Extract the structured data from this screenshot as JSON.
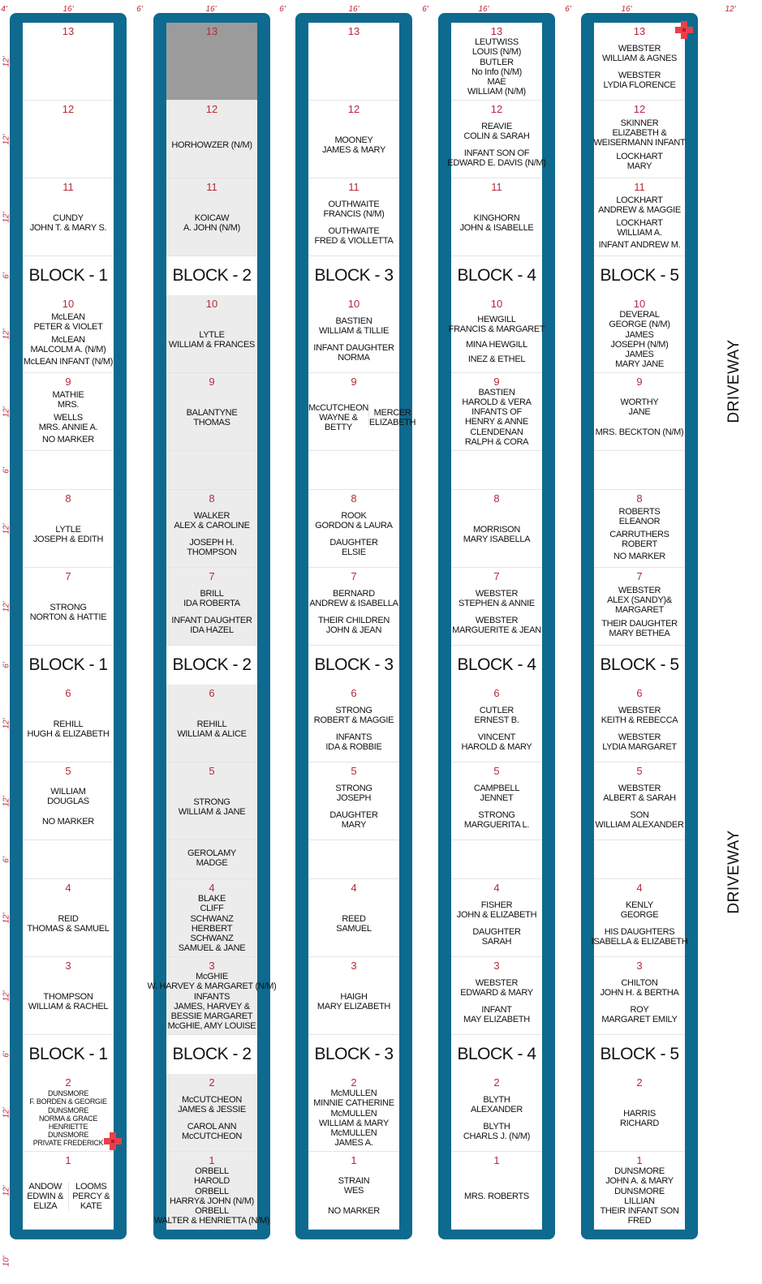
{
  "dimensions": {
    "top": [
      "4'",
      "16'",
      "6'",
      "16'",
      "6'",
      "16'",
      "6'",
      "16'",
      "6'",
      "16'",
      "12'"
    ],
    "lot": "12'",
    "row": "6'",
    "bottom": "10'"
  },
  "driveway": "DRIVEWAY",
  "blocks": [
    {
      "name": "BLOCK - 1",
      "lots": [
        {
          "number": 13,
          "entries": []
        },
        {
          "number": 12,
          "entries": []
        },
        {
          "number": 11,
          "entries": [
            [
              "CUNDY",
              "JOHN T. & MARY S."
            ]
          ]
        },
        {
          "number": 10,
          "entries": [
            [
              "McLEAN",
              "PETER & VIOLET"
            ],
            [
              "McLEAN",
              "MALCOLM A. (N/M)"
            ],
            [
              "McLEAN INFANT (N/M)"
            ]
          ]
        },
        {
          "number": 9,
          "entries": [
            [
              "MATHIE",
              "MRS."
            ],
            [
              "WELLS",
              "MRS. ANNIE A."
            ],
            [
              "NO MARKER"
            ]
          ]
        },
        {
          "number": 8,
          "entries": [
            [
              "LYTLE",
              "JOSEPH & EDITH"
            ]
          ]
        },
        {
          "number": 7,
          "entries": [
            [
              "STRONG",
              "NORTON & HATTIE"
            ]
          ]
        },
        {
          "number": 6,
          "entries": [
            [
              "REHILL",
              "HUGH & ELIZABETH"
            ]
          ]
        },
        {
          "number": 5,
          "entries": [
            [
              "WILLIAM",
              "DOUGLAS"
            ],
            [
              "NO MARKER"
            ]
          ]
        },
        {
          "number": 4,
          "entries": [
            [
              "REID",
              "THOMAS & SAMUEL"
            ]
          ]
        },
        {
          "number": 3,
          "entries": [
            [
              "THOMPSON",
              "WILLIAM & RACHEL"
            ]
          ]
        },
        {
          "number": 2,
          "entries": [
            [
              "DUNSMORE",
              "F. BORDEN & GEORGIE"
            ],
            [
              "DUNSMORE",
              "NORMA & GRACE",
              "HENRIETTE"
            ],
            [
              "DUNSMORE",
              "PRIVATE FREDERICK"
            ]
          ]
        },
        {
          "number": 1,
          "split": true,
          "entries": [
            [
              "ANDOW",
              "EDWIN &",
              "ELIZA"
            ],
            [
              "LOOMS",
              "PERCY &",
              "KATE"
            ]
          ]
        }
      ],
      "gaps": [
        [],
        []
      ]
    },
    {
      "name": "BLOCK - 2",
      "background": "#ececec",
      "lots": [
        {
          "number": 13,
          "entries": [],
          "background": "#9b9b9b"
        },
        {
          "number": 12,
          "entries": [
            [
              "HORHOWZER (N/M)"
            ]
          ]
        },
        {
          "number": 11,
          "entries": [
            [
              "KOICAW",
              "A. JOHN (N/M)"
            ]
          ]
        },
        {
          "number": 10,
          "entries": [
            [
              "LYTLE",
              "WILLIAM & FRANCES"
            ]
          ]
        },
        {
          "number": 9,
          "entries": [
            [
              "BALANTYNE",
              "THOMAS"
            ]
          ]
        },
        {
          "number": 8,
          "entries": [
            [
              "WALKER",
              "ALEX & CAROLINE"
            ],
            [
              "JOSEPH H.",
              "THOMPSON"
            ]
          ]
        },
        {
          "number": 7,
          "entries": [
            [
              "BRILL",
              "IDA ROBERTA"
            ],
            [
              "INFANT DAUGHTER",
              "IDA HAZEL"
            ]
          ]
        },
        {
          "number": 6,
          "entries": [
            [
              "REHILL",
              "WILLIAM & ALICE"
            ]
          ]
        },
        {
          "number": 5,
          "entries": [
            [
              "STRONG",
              "WILLIAM & JANE"
            ]
          ]
        },
        {
          "number": 4,
          "entries": [
            [
              "BLAKE",
              "CLIFF"
            ],
            [
              "SCHWANZ",
              "HERBERT"
            ],
            [
              "SCHWANZ",
              "SAMUEL & JANE"
            ]
          ]
        },
        {
          "number": 3,
          "entries": [
            [
              "McGHIE",
              "W. HARVEY & MARGARET (N/M)"
            ],
            [
              "INFANTS",
              "JAMES, HARVEY &",
              "BESSIE MARGARET"
            ],
            [
              "McGHIE, AMY LOUISE"
            ]
          ]
        },
        {
          "number": 2,
          "entries": [
            [
              "McCUTCHEON",
              "JAMES & JESSIE"
            ],
            [
              "CAROL ANN",
              "McCUTCHEON"
            ]
          ]
        },
        {
          "number": 1,
          "entries": [
            [
              "ORBELL",
              "HAROLD"
            ],
            [
              "ORBELL",
              "HARRY& JOHN (N/M)"
            ],
            [
              "ORBELL",
              "WALTER & HENRIETTA (N/M)"
            ]
          ]
        }
      ],
      "gaps": [
        [],
        [
          [
            "GEROLAMY",
            "MADGE"
          ]
        ]
      ]
    },
    {
      "name": "BLOCK - 3",
      "lots": [
        {
          "number": 13,
          "entries": []
        },
        {
          "number": 12,
          "entries": [
            [
              "MOONEY",
              "JAMES & MARY"
            ]
          ]
        },
        {
          "number": 11,
          "entries": [
            [
              "OUTHWAITE",
              "FRANCIS (N/M)"
            ],
            [
              "OUTHWAITE",
              "FRED & VIOLLETTA"
            ]
          ]
        },
        {
          "number": 10,
          "entries": [
            [
              "BASTIEN",
              "WILLIAM & TILLIE"
            ],
            [
              "INFANT DAUGHTER",
              "NORMA"
            ]
          ]
        },
        {
          "number": 9,
          "split": true,
          "entries": [
            [
              "McCUTCHEON",
              "WAYNE &",
              "BETTY"
            ],
            [
              "MERCER",
              "ELIZABETH"
            ]
          ]
        },
        {
          "number": 8,
          "entries": [
            [
              "ROOK",
              "GORDON & LAURA"
            ],
            [
              "DAUGHTER",
              "ELSIE"
            ]
          ]
        },
        {
          "number": 7,
          "entries": [
            [
              "BERNARD",
              "ANDREW & ISABELLA"
            ],
            [
              "THEIR CHILDREN",
              "JOHN & JEAN"
            ]
          ]
        },
        {
          "number": 6,
          "entries": [
            [
              "STRONG",
              "ROBERT & MAGGIE"
            ],
            [
              "INFANTS",
              "IDA & ROBBIE"
            ]
          ]
        },
        {
          "number": 5,
          "entries": [
            [
              "STRONG",
              "JOSEPH"
            ],
            [
              "DAUGHTER",
              "MARY"
            ]
          ]
        },
        {
          "number": 4,
          "entries": [
            [
              "REED",
              "SAMUEL"
            ]
          ]
        },
        {
          "number": 3,
          "entries": [
            [
              "HAIGH",
              "MARY ELIZABETH"
            ]
          ]
        },
        {
          "number": 2,
          "entries": [
            [
              "McMULLEN",
              "MINNIE CATHERINE"
            ],
            [
              "McMULLEN",
              "WILLIAM & MARY"
            ],
            [
              "McMULLEN",
              "JAMES A."
            ]
          ]
        },
        {
          "number": 1,
          "entries": [
            [
              "STRAIN",
              "WES"
            ],
            [
              "NO MARKER"
            ]
          ]
        }
      ],
      "gaps": [
        [],
        []
      ]
    },
    {
      "name": "BLOCK - 4",
      "lots": [
        {
          "number": 13,
          "entries": [
            [
              "LEUTWISS",
              "LOUIS (N/M)"
            ],
            [
              "BUTLER",
              "No Info (N/M)"
            ],
            [
              "MAE",
              "WILLIAM (N/M)"
            ]
          ]
        },
        {
          "number": 12,
          "entries": [
            [
              "REAVIE",
              "COLIN & SARAH"
            ],
            [
              "INFANT SON OF",
              "EDWARD E. DAVIS (N/M)"
            ]
          ]
        },
        {
          "number": 11,
          "entries": [
            [
              "KINGHORN",
              "JOHN & ISABELLE"
            ]
          ]
        },
        {
          "number": 10,
          "entries": [
            [
              "HEWGILL",
              "FRANCIS & MARGARET"
            ],
            [
              "MINA HEWGILL"
            ],
            [
              "INEZ & ETHEL"
            ]
          ]
        },
        {
          "number": 9,
          "entries": [
            [
              "BASTIEN",
              "HAROLD & VERA",
              "INFANTS OF",
              "HENRY & ANNE"
            ],
            [
              "CLENDENAN",
              "RALPH & CORA"
            ]
          ]
        },
        {
          "number": 8,
          "entries": [
            [
              "MORRISON",
              "MARY ISABELLA"
            ]
          ]
        },
        {
          "number": 7,
          "entries": [
            [
              "WEBSTER",
              "STEPHEN & ANNIE"
            ],
            [
              "WEBSTER",
              "MARGUERITE & JEAN"
            ]
          ]
        },
        {
          "number": 6,
          "entries": [
            [
              "CUTLER",
              "ERNEST B."
            ],
            [
              "VINCENT",
              "HAROLD & MARY"
            ]
          ]
        },
        {
          "number": 5,
          "entries": [
            [
              "CAMPBELL",
              "JENNET"
            ],
            [
              "STRONG",
              "MARGUERITA L."
            ]
          ]
        },
        {
          "number": 4,
          "entries": [
            [
              "FISHER",
              "JOHN & ELIZABETH"
            ],
            [
              "DAUGHTER",
              "SARAH"
            ]
          ]
        },
        {
          "number": 3,
          "entries": [
            [
              "WEBSTER",
              "EDWARD & MARY"
            ],
            [
              "INFANT",
              "MAY ELIZABETH"
            ]
          ]
        },
        {
          "number": 2,
          "entries": [
            [
              "BLYTH",
              "ALEXANDER"
            ],
            [
              "BLYTH",
              "CHARLS J. (N/M)"
            ]
          ]
        },
        {
          "number": 1,
          "entries": [
            [
              "MRS. ROBERTS"
            ]
          ]
        }
      ],
      "gaps": [
        [],
        []
      ]
    },
    {
      "name": "BLOCK - 5",
      "lots": [
        {
          "number": 13,
          "entries": [
            [
              "WEBSTER",
              "WILLIAM & AGNES"
            ],
            [
              "WEBSTER",
              "LYDIA FLORENCE"
            ]
          ]
        },
        {
          "number": 12,
          "entries": [
            [
              "SKINNER",
              "ELIZABETH &",
              "WEISERMANN INFANT"
            ],
            [
              "LOCKHART",
              "MARY"
            ]
          ]
        },
        {
          "number": 11,
          "entries": [
            [
              "LOCKHART",
              "ANDREW & MAGGIE"
            ],
            [
              "LOCKHART",
              "WILLIAM A."
            ],
            [
              "INFANT ANDREW M."
            ]
          ]
        },
        {
          "number": 10,
          "entries": [
            [
              "DEVERAL",
              "GEORGE (N/M)"
            ],
            [
              "JAMES",
              "JOSEPH (N/M)"
            ],
            [
              "JAMES",
              "MARY JANE"
            ]
          ]
        },
        {
          "number": 9,
          "entries": [
            [
              "WORTHY",
              "JANE"
            ],
            [
              "MRS. BECKTON (N/M)"
            ]
          ]
        },
        {
          "number": 8,
          "entries": [
            [
              "ROBERTS",
              "ELEANOR"
            ],
            [
              "CARRUTHERS",
              "ROBERT"
            ],
            [
              "NO MARKER"
            ]
          ]
        },
        {
          "number": 7,
          "entries": [
            [
              "WEBSTER",
              "ALEX (SANDY)&",
              "MARGARET"
            ],
            [
              "THEIR DAUGHTER",
              "MARY BETHEA"
            ]
          ]
        },
        {
          "number": 6,
          "entries": [
            [
              "WEBSTER",
              "KEITH & REBECCA"
            ],
            [
              "WEBSTER",
              "LYDIA MARGARET"
            ]
          ]
        },
        {
          "number": 5,
          "entries": [
            [
              "WEBSTER",
              "ALBERT & SARAH"
            ],
            [
              "SON",
              "WILLIAM ALEXANDER"
            ]
          ]
        },
        {
          "number": 4,
          "entries": [
            [
              "KENLY",
              "GEORGE"
            ],
            [
              "HIS DAUGHTERS",
              "ISABELLA & ELIZABETH"
            ]
          ]
        },
        {
          "number": 3,
          "entries": [
            [
              "CHILTON",
              "JOHN H. & BERTHA"
            ],
            [
              "ROY",
              "MARGARET EMILY"
            ]
          ]
        },
        {
          "number": 2,
          "entries": [
            [
              "HARRIS",
              "RICHARD"
            ]
          ]
        },
        {
          "number": 1,
          "entries": [
            [
              "DUNSMORE",
              "JOHN A. & MARY"
            ],
            [
              "DUNSMORE",
              "LILLIAN"
            ],
            [
              "THEIR INFANT SON",
              "FRED"
            ]
          ]
        }
      ],
      "gaps": [
        [],
        []
      ]
    }
  ]
}
